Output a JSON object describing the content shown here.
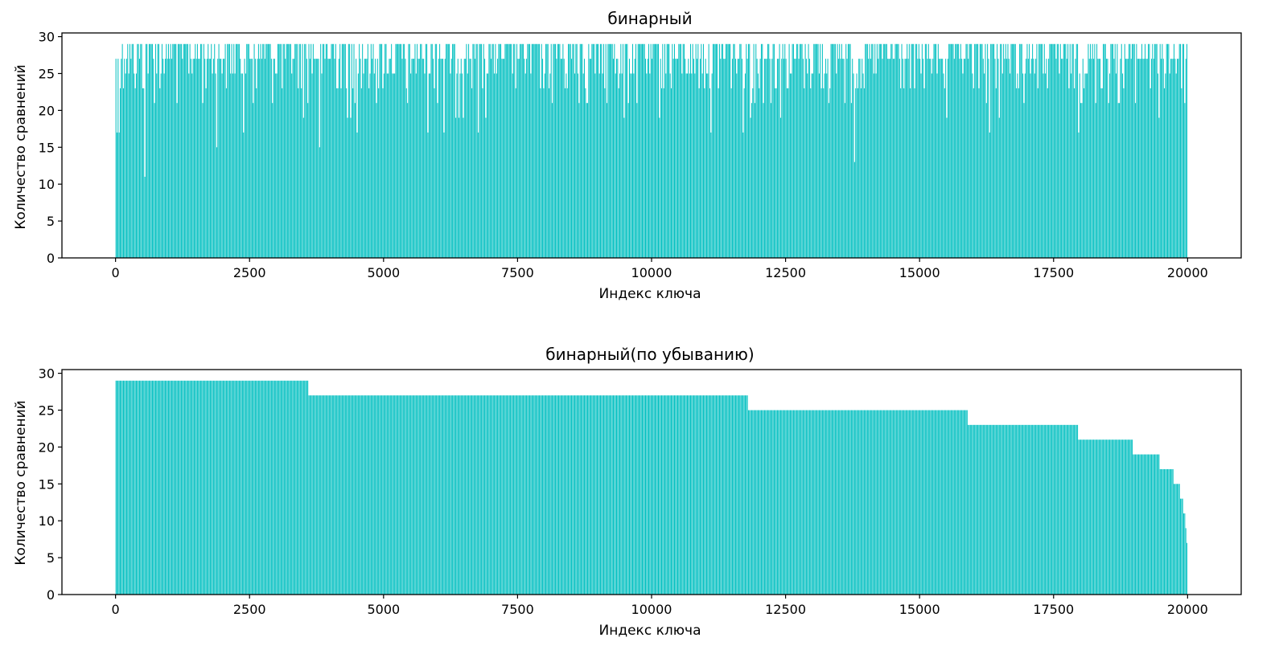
{
  "colors": {
    "bar": "#00bfc0",
    "axis": "#000000",
    "background": "#ffffff"
  },
  "chart_data": [
    {
      "type": "bar",
      "title": "бинарный",
      "xlabel": "Индекс ключа",
      "ylabel": "Количество сравнений",
      "xlim": [
        -1000,
        21000
      ],
      "ylim": [
        0,
        30.5
      ],
      "xticks": [
        0,
        2500,
        5000,
        7500,
        10000,
        12500,
        15000,
        17500,
        20000
      ],
      "xtick_labels": [
        "0",
        "2500",
        "5000",
        "7500",
        "10000",
        "12500",
        "15000",
        "17500",
        "20000"
      ],
      "yticks": [
        0,
        5,
        10,
        15,
        20,
        25,
        30
      ],
      "ytick_labels": [
        "0",
        "5",
        "10",
        "15",
        "20",
        "25",
        "30"
      ],
      "grid": false,
      "legend": "none",
      "series": [
        {
          "x_start": 0,
          "x_step": 20,
          "count": 1000,
          "bar_width": 14,
          "distribution": "random order of binary-search comparison counts",
          "value_levels": [
            29,
            27,
            25,
            23,
            21,
            19,
            17,
            15,
            13,
            11,
            9,
            7
          ],
          "notable_values": [
            {
              "x": 20,
              "y": 17
            },
            {
              "x": 80,
              "y": 23
            },
            {
              "x": 500,
              "y": 23
            },
            {
              "x": 540,
              "y": 11
            },
            {
              "x": 1880,
              "y": 15
            },
            {
              "x": 2560,
              "y": 21
            },
            {
              "x": 3800,
              "y": 15
            },
            {
              "x": 4380,
              "y": 19
            },
            {
              "x": 5440,
              "y": 21
            },
            {
              "x": 6120,
              "y": 17
            },
            {
              "x": 9480,
              "y": 19
            },
            {
              "x": 13780,
              "y": 13
            },
            {
              "x": 15500,
              "y": 19
            },
            {
              "x": 16300,
              "y": 17
            },
            {
              "x": 19460,
              "y": 19
            }
          ]
        }
      ]
    },
    {
      "type": "bar",
      "title": "бинарный(по убыванию)",
      "xlabel": "Индекс ключа",
      "ylabel": "Количество сравнений",
      "xlim": [
        -1000,
        21000
      ],
      "ylim": [
        0,
        30.5
      ],
      "xticks": [
        0,
        2500,
        5000,
        7500,
        10000,
        12500,
        15000,
        17500,
        20000
      ],
      "xtick_labels": [
        "0",
        "2500",
        "5000",
        "7500",
        "10000",
        "12500",
        "15000",
        "17500",
        "20000"
      ],
      "yticks": [
        0,
        5,
        10,
        15,
        20,
        25,
        30
      ],
      "ytick_labels": [
        "0",
        "5",
        "10",
        "15",
        "20",
        "25",
        "30"
      ],
      "grid": false,
      "legend": "none",
      "series": [
        {
          "x_start": 0,
          "x_step": 20,
          "count": 1000,
          "bar_width": 14,
          "steps": [
            {
              "from": 0,
              "to": 3600,
              "y": 29
            },
            {
              "from": 3600,
              "to": 11800,
              "y": 27
            },
            {
              "from": 11800,
              "to": 15900,
              "y": 25
            },
            {
              "from": 15900,
              "to": 17960,
              "y": 23
            },
            {
              "from": 17960,
              "to": 18980,
              "y": 21
            },
            {
              "from": 18980,
              "to": 19480,
              "y": 19
            },
            {
              "from": 19480,
              "to": 19740,
              "y": 17
            },
            {
              "from": 19740,
              "to": 19860,
              "y": 15
            },
            {
              "from": 19860,
              "to": 19920,
              "y": 13
            },
            {
              "from": 19920,
              "to": 19950,
              "y": 11
            },
            {
              "from": 19950,
              "to": 19970,
              "y": 9
            },
            {
              "from": 19970,
              "to": 20000,
              "y": 7
            }
          ]
        }
      ]
    }
  ]
}
